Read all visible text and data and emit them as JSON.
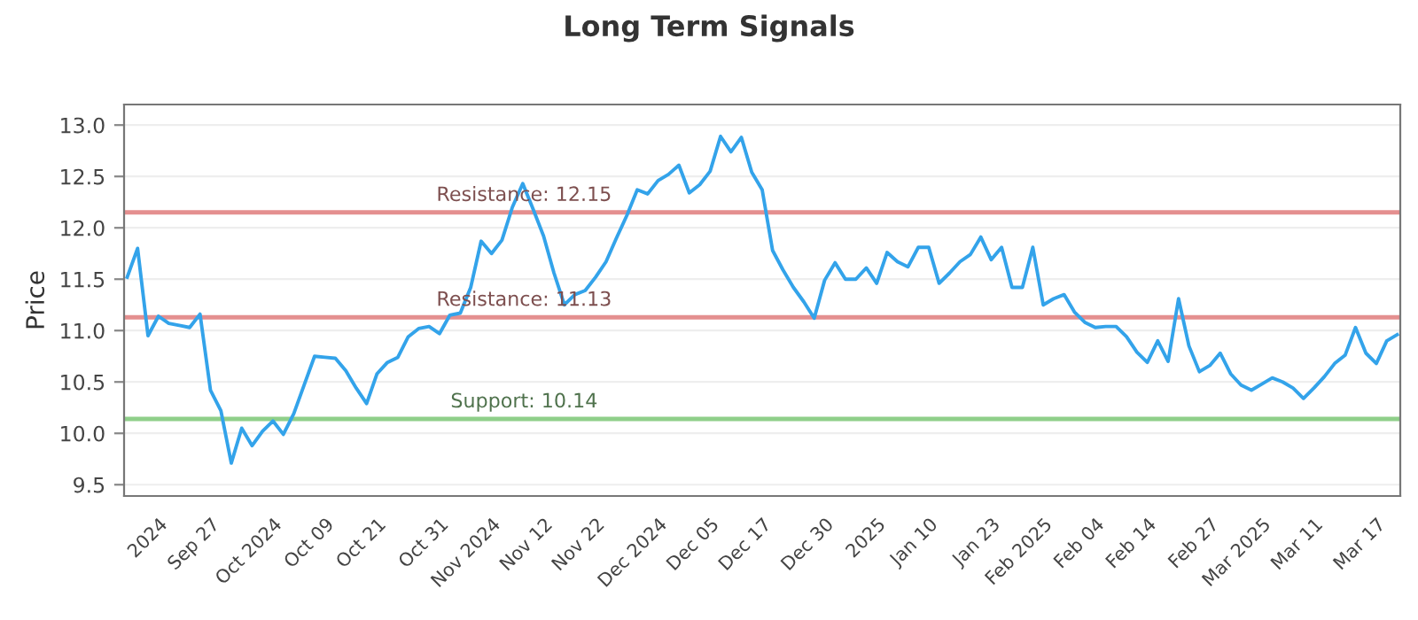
{
  "chart_data": {
    "type": "line",
    "title": "Long Term Signals",
    "ylabel": "Price",
    "categories": [
      null,
      null,
      null,
      "2024",
      null,
      null,
      null,
      null,
      "Sep 27",
      null,
      null,
      null,
      null,
      null,
      "Oct 2024",
      null,
      null,
      null,
      null,
      "Oct 09",
      null,
      null,
      null,
      null,
      "Oct 21",
      null,
      null,
      null,
      null,
      null,
      "Oct 31",
      null,
      null,
      null,
      null,
      "Nov 2024",
      null,
      null,
      null,
      null,
      "Nov 12",
      null,
      null,
      null,
      null,
      "Nov 22",
      null,
      null,
      null,
      null,
      null,
      "Dec 2024",
      null,
      null,
      null,
      null,
      "Dec 05",
      null,
      null,
      null,
      null,
      "Dec 17",
      null,
      null,
      null,
      null,
      null,
      "Dec 30",
      null,
      null,
      null,
      null,
      "2025",
      null,
      null,
      null,
      null,
      "Jan 10",
      null,
      null,
      null,
      null,
      null,
      "Jan 23",
      null,
      null,
      null,
      null,
      "Feb 2025",
      null,
      null,
      null,
      null,
      "Feb 04",
      null,
      null,
      null,
      null,
      "Feb 14",
      null,
      null,
      null,
      null,
      null,
      "Feb 27",
      null,
      null,
      null,
      null,
      "Mar 2025",
      null,
      null,
      null,
      null,
      "Mar 11",
      null,
      null,
      null,
      null,
      null,
      "Mar 17",
      null,
      null
    ],
    "series": [
      {
        "color": "#33a3ea",
        "values": [
          11.52,
          11.8,
          10.95,
          11.14,
          11.07,
          11.05,
          11.03,
          11.16,
          10.42,
          10.22,
          9.71,
          10.05,
          9.88,
          10.02,
          10.12,
          9.99,
          10.19,
          10.47,
          10.75,
          10.74,
          10.73,
          10.61,
          10.44,
          10.29,
          10.58,
          10.69,
          10.74,
          10.94,
          11.02,
          11.04,
          10.97,
          11.15,
          11.17,
          11.42,
          11.87,
          11.75,
          11.88,
          12.2,
          12.43,
          12.18,
          11.92,
          11.56,
          11.25,
          11.35,
          11.39,
          11.52,
          11.67,
          11.9,
          12.12,
          12.37,
          12.33,
          12.46,
          12.52,
          12.61,
          12.34,
          12.42,
          12.55,
          12.89,
          12.74,
          12.88,
          12.54,
          12.37,
          11.78,
          11.59,
          11.42,
          11.28,
          11.12,
          11.49,
          11.66,
          11.5,
          11.5,
          11.61,
          11.46,
          11.76,
          11.67,
          11.62,
          11.81,
          11.81,
          11.46,
          11.56,
          11.67,
          11.74,
          11.91,
          11.69,
          11.81,
          11.42,
          11.42,
          11.81,
          11.25,
          11.31,
          11.35,
          11.18,
          11.08,
          11.03,
          11.04,
          11.04,
          10.94,
          10.79,
          10.69,
          10.9,
          10.7,
          11.31,
          10.85,
          10.6,
          10.66,
          10.78,
          10.58,
          10.47,
          10.42,
          10.48,
          10.54,
          10.5,
          10.44,
          10.34,
          10.44,
          10.55,
          10.68,
          10.76,
          11.03,
          10.78,
          10.68,
          10.9,
          10.96
        ]
      }
    ],
    "ylim": [
      9.39,
      13.2
    ],
    "yticks": [
      9.5,
      {
        "value": 10,
        "label": "10.0"
      },
      10.5,
      {
        "value": 11,
        "label": "11.0"
      },
      11.5,
      {
        "value": 12,
        "label": "12.0"
      },
      12.5,
      {
        "value": 13,
        "label": "13.0"
      }
    ],
    "grid": "y",
    "marker": "none",
    "line_style": "solid",
    "ref_lines": [
      {
        "axis": "y",
        "value": 12.15,
        "label": "Resistance: 12.15",
        "color": "#e48f8f"
      },
      {
        "axis": "y",
        "value": 11.13,
        "label": "Resistance: 11.13",
        "color": "#e48f8f"
      },
      {
        "axis": "y",
        "value": 10.14,
        "label": "Support: 10.14",
        "color": "#8fcf8a"
      }
    ]
  }
}
